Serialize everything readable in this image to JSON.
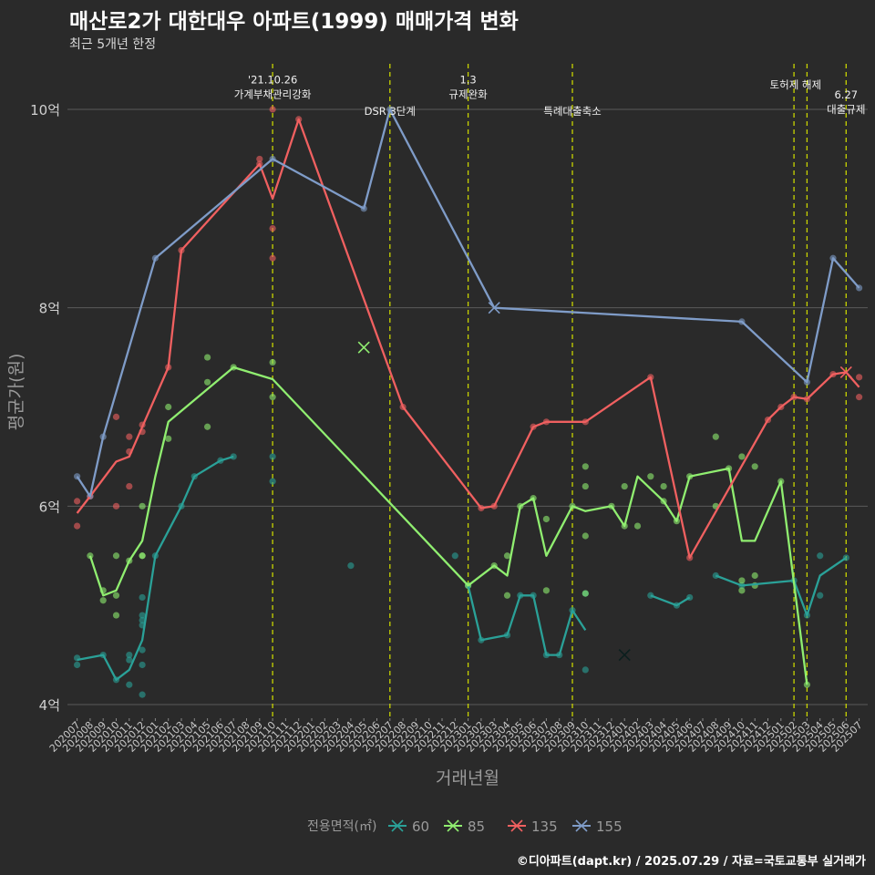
{
  "title": "매산로2가 대한대우 아파트(1999) 매매가격 변화",
  "subtitle": "최근 5개년 한정",
  "caption": "©디아파트(dapt.kr) / 2025.07.29 / 자료=국토교통부 실거래가",
  "chart_data": {
    "type": "line",
    "title": "매산로2가 대한대우 아파트(1999) 매매가격 변화",
    "subtitle": "최근 5개년 한정",
    "xlabel": "거래년월",
    "ylabel": "평균가(원)",
    "ylim": [
      3.85,
      10.5
    ],
    "yticks": [
      4,
      6,
      8,
      10
    ],
    "ytick_labels": [
      "4억",
      "6억",
      "8억",
      "10억"
    ],
    "categories": [
      "202007",
      "202008",
      "202009",
      "202010",
      "202011",
      "202012",
      "202101",
      "202102",
      "202103",
      "202104",
      "202105",
      "202106",
      "202107",
      "202108",
      "202109",
      "202110",
      "202111",
      "202112",
      "202201",
      "202202",
      "202203",
      "202204",
      "202205",
      "202206",
      "202207",
      "202208",
      "202209",
      "202210",
      "202211",
      "202212",
      "202301",
      "202302",
      "202303",
      "202304",
      "202305",
      "202306",
      "202307",
      "202308",
      "202309",
      "202310",
      "202311",
      "202312",
      "202401",
      "202402",
      "202403",
      "202404",
      "202405",
      "202406",
      "202407",
      "202408",
      "202409",
      "202410",
      "202411",
      "202412",
      "202501",
      "202502",
      "202503",
      "202504",
      "202505",
      "202506",
      "202507"
    ],
    "grid": true,
    "legend": {
      "title": "전용면적(㎡)",
      "position": "bottom"
    },
    "events": [
      {
        "x": "202110",
        "label": "'21.10.26\n가계부채관리강화",
        "label_y": 10.15
      },
      {
        "x": "202207",
        "label": "DSR 3단계",
        "label_y": 9.98
      },
      {
        "x": "202301",
        "label": "1.3\n규제완화",
        "label_y": 10.15
      },
      {
        "x": "202309",
        "label": "특례대출축소",
        "label_y": 9.98
      },
      {
        "x": "202502",
        "label": "토허제 해제",
        "label_y": 10.25,
        "label_anchor": "end"
      },
      {
        "x": "202503",
        "label": "",
        "label_y": 10.25
      },
      {
        "x": "202506",
        "label": "6.27\n대출규제",
        "label_y": 10.0
      }
    ],
    "series": [
      {
        "name": "60",
        "color": "#2aa198",
        "line": [
          [
            "202007",
            4.45
          ],
          [
            "202009",
            4.5
          ],
          [
            "202010",
            4.25
          ],
          [
            "202011",
            4.35
          ],
          [
            "202012",
            4.65
          ],
          [
            "202101",
            5.5
          ],
          [
            "202103",
            6.0
          ],
          [
            "202104",
            6.3
          ],
          [
            "202106",
            6.46
          ],
          [
            "202107",
            6.5
          ],
          null,
          [
            "202301",
            5.2
          ],
          [
            "202302",
            4.65
          ],
          [
            "202304",
            4.7
          ],
          [
            "202305",
            5.1
          ],
          [
            "202306",
            5.1
          ],
          [
            "202307",
            4.5
          ],
          [
            "202308",
            4.5
          ],
          [
            "202309",
            4.95
          ],
          [
            "202310",
            4.75
          ],
          null,
          [
            "202403",
            5.1
          ],
          [
            "202405",
            5.0
          ],
          [
            "202406",
            5.08
          ],
          null,
          [
            "202408",
            5.3
          ],
          [
            "202410",
            5.2
          ],
          [
            "202502",
            5.25
          ],
          [
            "202503",
            4.9
          ],
          [
            "202504",
            5.3
          ],
          [
            "202506",
            5.48
          ]
        ],
        "points": [
          [
            "202007",
            4.47
          ],
          [
            "202007",
            4.4
          ],
          [
            "202009",
            4.5
          ],
          [
            "202010",
            4.25
          ],
          [
            "202011",
            4.5
          ],
          [
            "202011",
            4.45
          ],
          [
            "202011",
            4.2
          ],
          [
            "202012",
            5.08
          ],
          [
            "202012",
            4.9
          ],
          [
            "202012",
            4.85
          ],
          [
            "202012",
            4.8
          ],
          [
            "202012",
            4.55
          ],
          [
            "202012",
            4.4
          ],
          [
            "202012",
            4.1
          ],
          [
            "202101",
            5.5
          ],
          [
            "202103",
            6.0
          ],
          [
            "202104",
            6.3
          ],
          [
            "202106",
            6.46
          ],
          [
            "202107",
            6.5
          ],
          [
            "202110",
            6.5
          ],
          [
            "202110",
            6.25
          ],
          [
            "202204",
            5.4
          ],
          [
            "202212",
            5.5
          ],
          [
            "202301",
            5.2
          ],
          [
            "202302",
            4.65
          ],
          [
            "202304",
            4.7
          ],
          [
            "202305",
            5.1
          ],
          [
            "202306",
            5.1
          ],
          [
            "202307",
            4.5
          ],
          [
            "202308",
            4.5
          ],
          [
            "202309",
            4.95
          ],
          [
            "202310",
            5.12
          ],
          [
            "202310",
            4.35
          ],
          [
            "202403",
            5.1
          ],
          [
            "202405",
            5.0
          ],
          [
            "202406",
            5.08
          ],
          [
            "202408",
            5.3
          ],
          [
            "202410",
            5.2
          ],
          [
            "202502",
            5.25
          ],
          [
            "202503",
            4.9
          ],
          [
            "202504",
            5.5
          ],
          [
            "202504",
            5.1
          ],
          [
            "202506",
            5.48
          ]
        ],
        "mean_marker": [
          "202401",
          4.5
        ]
      },
      {
        "name": "85",
        "color": "#90ee70",
        "line": [
          [
            "202008",
            5.5
          ],
          [
            "202009",
            5.1
          ],
          [
            "202010",
            5.15
          ],
          [
            "202011",
            5.45
          ],
          [
            "202012",
            5.65
          ],
          [
            "202101",
            6.3
          ],
          [
            "202102",
            6.85
          ],
          [
            "202107",
            7.4
          ],
          [
            "202110",
            7.28
          ],
          [
            "202301",
            5.2
          ],
          [
            "202303",
            5.4
          ],
          [
            "202304",
            5.3
          ],
          [
            "202305",
            6.0
          ],
          [
            "202306",
            6.08
          ],
          [
            "202307",
            5.5
          ],
          [
            "202309",
            6.0
          ],
          [
            "202310",
            5.95
          ],
          [
            "202312",
            6.0
          ],
          [
            "202401",
            5.8
          ],
          [
            "202402",
            6.3
          ],
          [
            "202404",
            6.05
          ],
          [
            "202405",
            5.85
          ],
          [
            "202406",
            6.3
          ],
          [
            "202409",
            6.38
          ],
          [
            "202410",
            5.65
          ],
          [
            "202411",
            5.65
          ],
          [
            "202501",
            6.25
          ],
          [
            "202503",
            4.2
          ]
        ],
        "points": [
          [
            "202008",
            5.5
          ],
          [
            "202009",
            5.15
          ],
          [
            "202009",
            5.05
          ],
          [
            "202010",
            5.5
          ],
          [
            "202010",
            5.1
          ],
          [
            "202010",
            4.9
          ],
          [
            "202011",
            5.45
          ],
          [
            "202012",
            6.0
          ],
          [
            "202012",
            5.5
          ],
          [
            "202012",
            5.5
          ],
          [
            "202102",
            7.0
          ],
          [
            "202102",
            6.68
          ],
          [
            "202105",
            7.5
          ],
          [
            "202105",
            7.25
          ],
          [
            "202105",
            6.8
          ],
          [
            "202107",
            7.4
          ],
          [
            "202110",
            7.45
          ],
          [
            "202110",
            7.1
          ],
          [
            "202301",
            5.2
          ],
          [
            "202303",
            5.4
          ],
          [
            "202304",
            5.5
          ],
          [
            "202304",
            5.1
          ],
          [
            "202305",
            6.0
          ],
          [
            "202306",
            6.08
          ],
          [
            "202307",
            5.87
          ],
          [
            "202307",
            5.15
          ],
          [
            "202309",
            6.0
          ],
          [
            "202310",
            6.4
          ],
          [
            "202310",
            6.2
          ],
          [
            "202310",
            5.7
          ],
          [
            "202310",
            5.12
          ],
          [
            "202312",
            6.0
          ],
          [
            "202401",
            6.2
          ],
          [
            "202401",
            5.8
          ],
          [
            "202402",
            5.8
          ],
          [
            "202403",
            6.3
          ],
          [
            "202404",
            6.2
          ],
          [
            "202404",
            6.05
          ],
          [
            "202405",
            5.85
          ],
          [
            "202406",
            6.3
          ],
          [
            "202408",
            6.7
          ],
          [
            "202408",
            6.0
          ],
          [
            "202409",
            6.38
          ],
          [
            "202410",
            6.5
          ],
          [
            "202410",
            5.25
          ],
          [
            "202410",
            5.15
          ],
          [
            "202411",
            6.4
          ],
          [
            "202411",
            5.3
          ],
          [
            "202411",
            5.2
          ],
          [
            "202501",
            6.25
          ],
          [
            "202503",
            4.2
          ]
        ],
        "mean_marker": [
          "202205",
          7.6
        ]
      },
      {
        "name": "135",
        "color": "#f06060",
        "line": [
          [
            "202007",
            5.93
          ],
          [
            "202008",
            6.1
          ],
          [
            "202010",
            6.45
          ],
          [
            "202011",
            6.5
          ],
          [
            "202012",
            6.8
          ],
          [
            "202102",
            7.4
          ],
          [
            "202103",
            8.58
          ],
          [
            "202109",
            9.45
          ],
          [
            "202110",
            9.1
          ],
          [
            "202112",
            9.9
          ],
          [
            "202208",
            7.0
          ],
          [
            "202302",
            5.98
          ],
          [
            "202303",
            6.0
          ],
          [
            "202306",
            6.8
          ],
          [
            "202307",
            6.85
          ],
          [
            "202310",
            6.85
          ],
          [
            "202403",
            7.3
          ],
          [
            "202406",
            5.48
          ],
          [
            "202412",
            6.87
          ],
          [
            "202501",
            7.0
          ],
          [
            "202502",
            7.1
          ],
          [
            "202503",
            7.08
          ],
          [
            "202505",
            7.33
          ],
          [
            "202506",
            7.35
          ],
          [
            "202507",
            7.2
          ]
        ],
        "points": [
          [
            "202007",
            6.05
          ],
          [
            "202007",
            5.8
          ],
          [
            "202008",
            6.1
          ],
          [
            "202010",
            6.9
          ],
          [
            "202010",
            6.0
          ],
          [
            "202011",
            6.7
          ],
          [
            "202011",
            6.55
          ],
          [
            "202011",
            6.2
          ],
          [
            "202012",
            6.82
          ],
          [
            "202012",
            6.75
          ],
          [
            "202102",
            7.4
          ],
          [
            "202103",
            8.58
          ],
          [
            "202109",
            9.5
          ],
          [
            "202109",
            9.45
          ],
          [
            "202110",
            10.0
          ],
          [
            "202110",
            8.8
          ],
          [
            "202110",
            8.5
          ],
          [
            "202112",
            9.9
          ],
          [
            "202208",
            7.0
          ],
          [
            "202302",
            5.98
          ],
          [
            "202303",
            6.0
          ],
          [
            "202306",
            6.8
          ],
          [
            "202307",
            6.85
          ],
          [
            "202310",
            6.85
          ],
          [
            "202403",
            7.3
          ],
          [
            "202406",
            5.48
          ],
          [
            "202412",
            6.87
          ],
          [
            "202501",
            7.0
          ],
          [
            "202502",
            7.1
          ],
          [
            "202503",
            7.08
          ],
          [
            "202505",
            7.33
          ],
          [
            "202507",
            7.3
          ],
          [
            "202507",
            7.1
          ]
        ],
        "mean_marker": [
          "202506",
          7.35
        ]
      },
      {
        "name": "155",
        "color": "#7f9cc8",
        "line": [
          [
            "202007",
            6.3
          ],
          [
            "202008",
            6.1
          ],
          [
            "202009",
            6.7
          ],
          [
            "202101",
            8.5
          ],
          [
            "202110",
            9.5
          ],
          [
            "202205",
            9.0
          ],
          [
            "202207",
            10.0
          ],
          [
            "202303",
            8.0
          ],
          [
            "202410",
            7.86
          ],
          [
            "202503",
            7.25
          ],
          [
            "202505",
            8.5
          ],
          [
            "202507",
            8.2
          ]
        ],
        "points": [
          [
            "202007",
            6.3
          ],
          [
            "202008",
            6.1
          ],
          [
            "202009",
            6.7
          ],
          [
            "202101",
            8.5
          ],
          [
            "202110",
            9.5
          ],
          [
            "202205",
            9.0
          ],
          [
            "202207",
            10.0
          ],
          [
            "202410",
            7.86
          ],
          [
            "202503",
            7.25
          ],
          [
            "202505",
            8.5
          ],
          [
            "202507",
            8.2
          ]
        ],
        "mean_marker": [
          "202303",
          8.0
        ]
      }
    ]
  }
}
